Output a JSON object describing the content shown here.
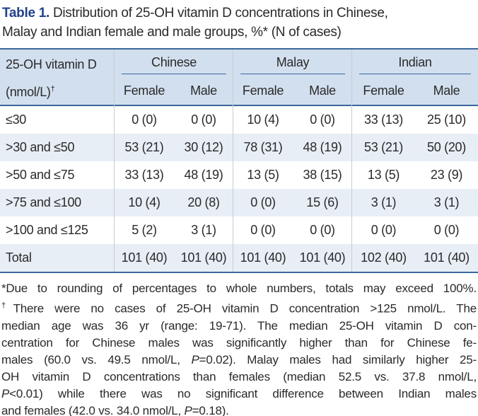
{
  "colors": {
    "title_accent_blue": "#24418c",
    "table_rule_blue": "#3a689c",
    "header_background": "#d2dfee",
    "stripe_background": "#e8eef6",
    "column_divider_gray": "#c7ccd2",
    "text": "#2a2a2a"
  },
  "title": {
    "label": "Table 1.",
    "line1": "Distribution of 25-OH vitamin D concentrations in Chinese,",
    "line2": "Malay and Indian female and male groups, %* (N of cases)"
  },
  "table": {
    "stub": {
      "line1": "25-OH vitamin D",
      "line2": "(nmol/L)",
      "sup": "†"
    },
    "groups": [
      {
        "label": "Chinese"
      },
      {
        "label": "Malay"
      },
      {
        "label": "Indian"
      }
    ],
    "subheaders": [
      "Female",
      "Male",
      "Female",
      "Male",
      "Female",
      "Male"
    ],
    "rows": [
      {
        "label": "≤30",
        "values": [
          "0 (0)",
          "0 (0)",
          "10 (4)",
          "0 (0)",
          "33 (13)",
          "25 (10)"
        ]
      },
      {
        "label": ">30 and ≤50",
        "values": [
          "53 (21)",
          "30 (12)",
          "78 (31)",
          "48 (19)",
          "53 (21)",
          "50 (20)"
        ]
      },
      {
        "label": ">50 and ≤75",
        "values": [
          "33 (13)",
          "48 (19)",
          "13 (5)",
          "38 (15)",
          "13 (5)",
          "23 (9)"
        ]
      },
      {
        "label": ">75 and ≤100",
        "values": [
          "10 (4)",
          "20 (8)",
          "0 (0)",
          "15 (6)",
          "3 (1)",
          "3 (1)"
        ]
      },
      {
        "label": ">100 and ≤125",
        "values": [
          "5 (2)",
          "3 (1)",
          "0 (0)",
          "0 (0)",
          "0 (0)",
          "0 (0)"
        ]
      },
      {
        "label": "Total",
        "values": [
          "101 (40)",
          "101 (40)",
          "101 (40)",
          "101 (40)",
          "102 (40)",
          "101 (40)"
        ]
      }
    ]
  },
  "footnotes": {
    "l1": {
      "text": "*Due to rounding of percentages to whole numbers, totals may exceed 100%."
    },
    "l2": {
      "sup": "†",
      "text": "There were no cases of 25-OH vitamin D concentration >125 nmol/L. The"
    },
    "l3": {
      "text": "median age was 36 yr (range: 19-71). The median 25-OH vitamin D con-"
    },
    "l4": {
      "text": "centration for Chinese males was significantly higher than for Chinese fe-"
    },
    "l5": {
      "pre": "males (60.0 vs. 49.5 nmol/L, ",
      "p": "P",
      "post": "=0.02). Malay males had similarly higher 25-"
    },
    "l6": {
      "text": "OH vitamin D concentrations than females (median 52.5 vs. 37.8 nmol/L,"
    },
    "l7": {
      "p": "P",
      "post": "<0.01) while there was no significant difference between Indian males"
    },
    "l8": {
      "pre": "and females (42.0 vs. 34.0 nmol/L, ",
      "p": "P",
      "post": "=0.18)."
    }
  }
}
